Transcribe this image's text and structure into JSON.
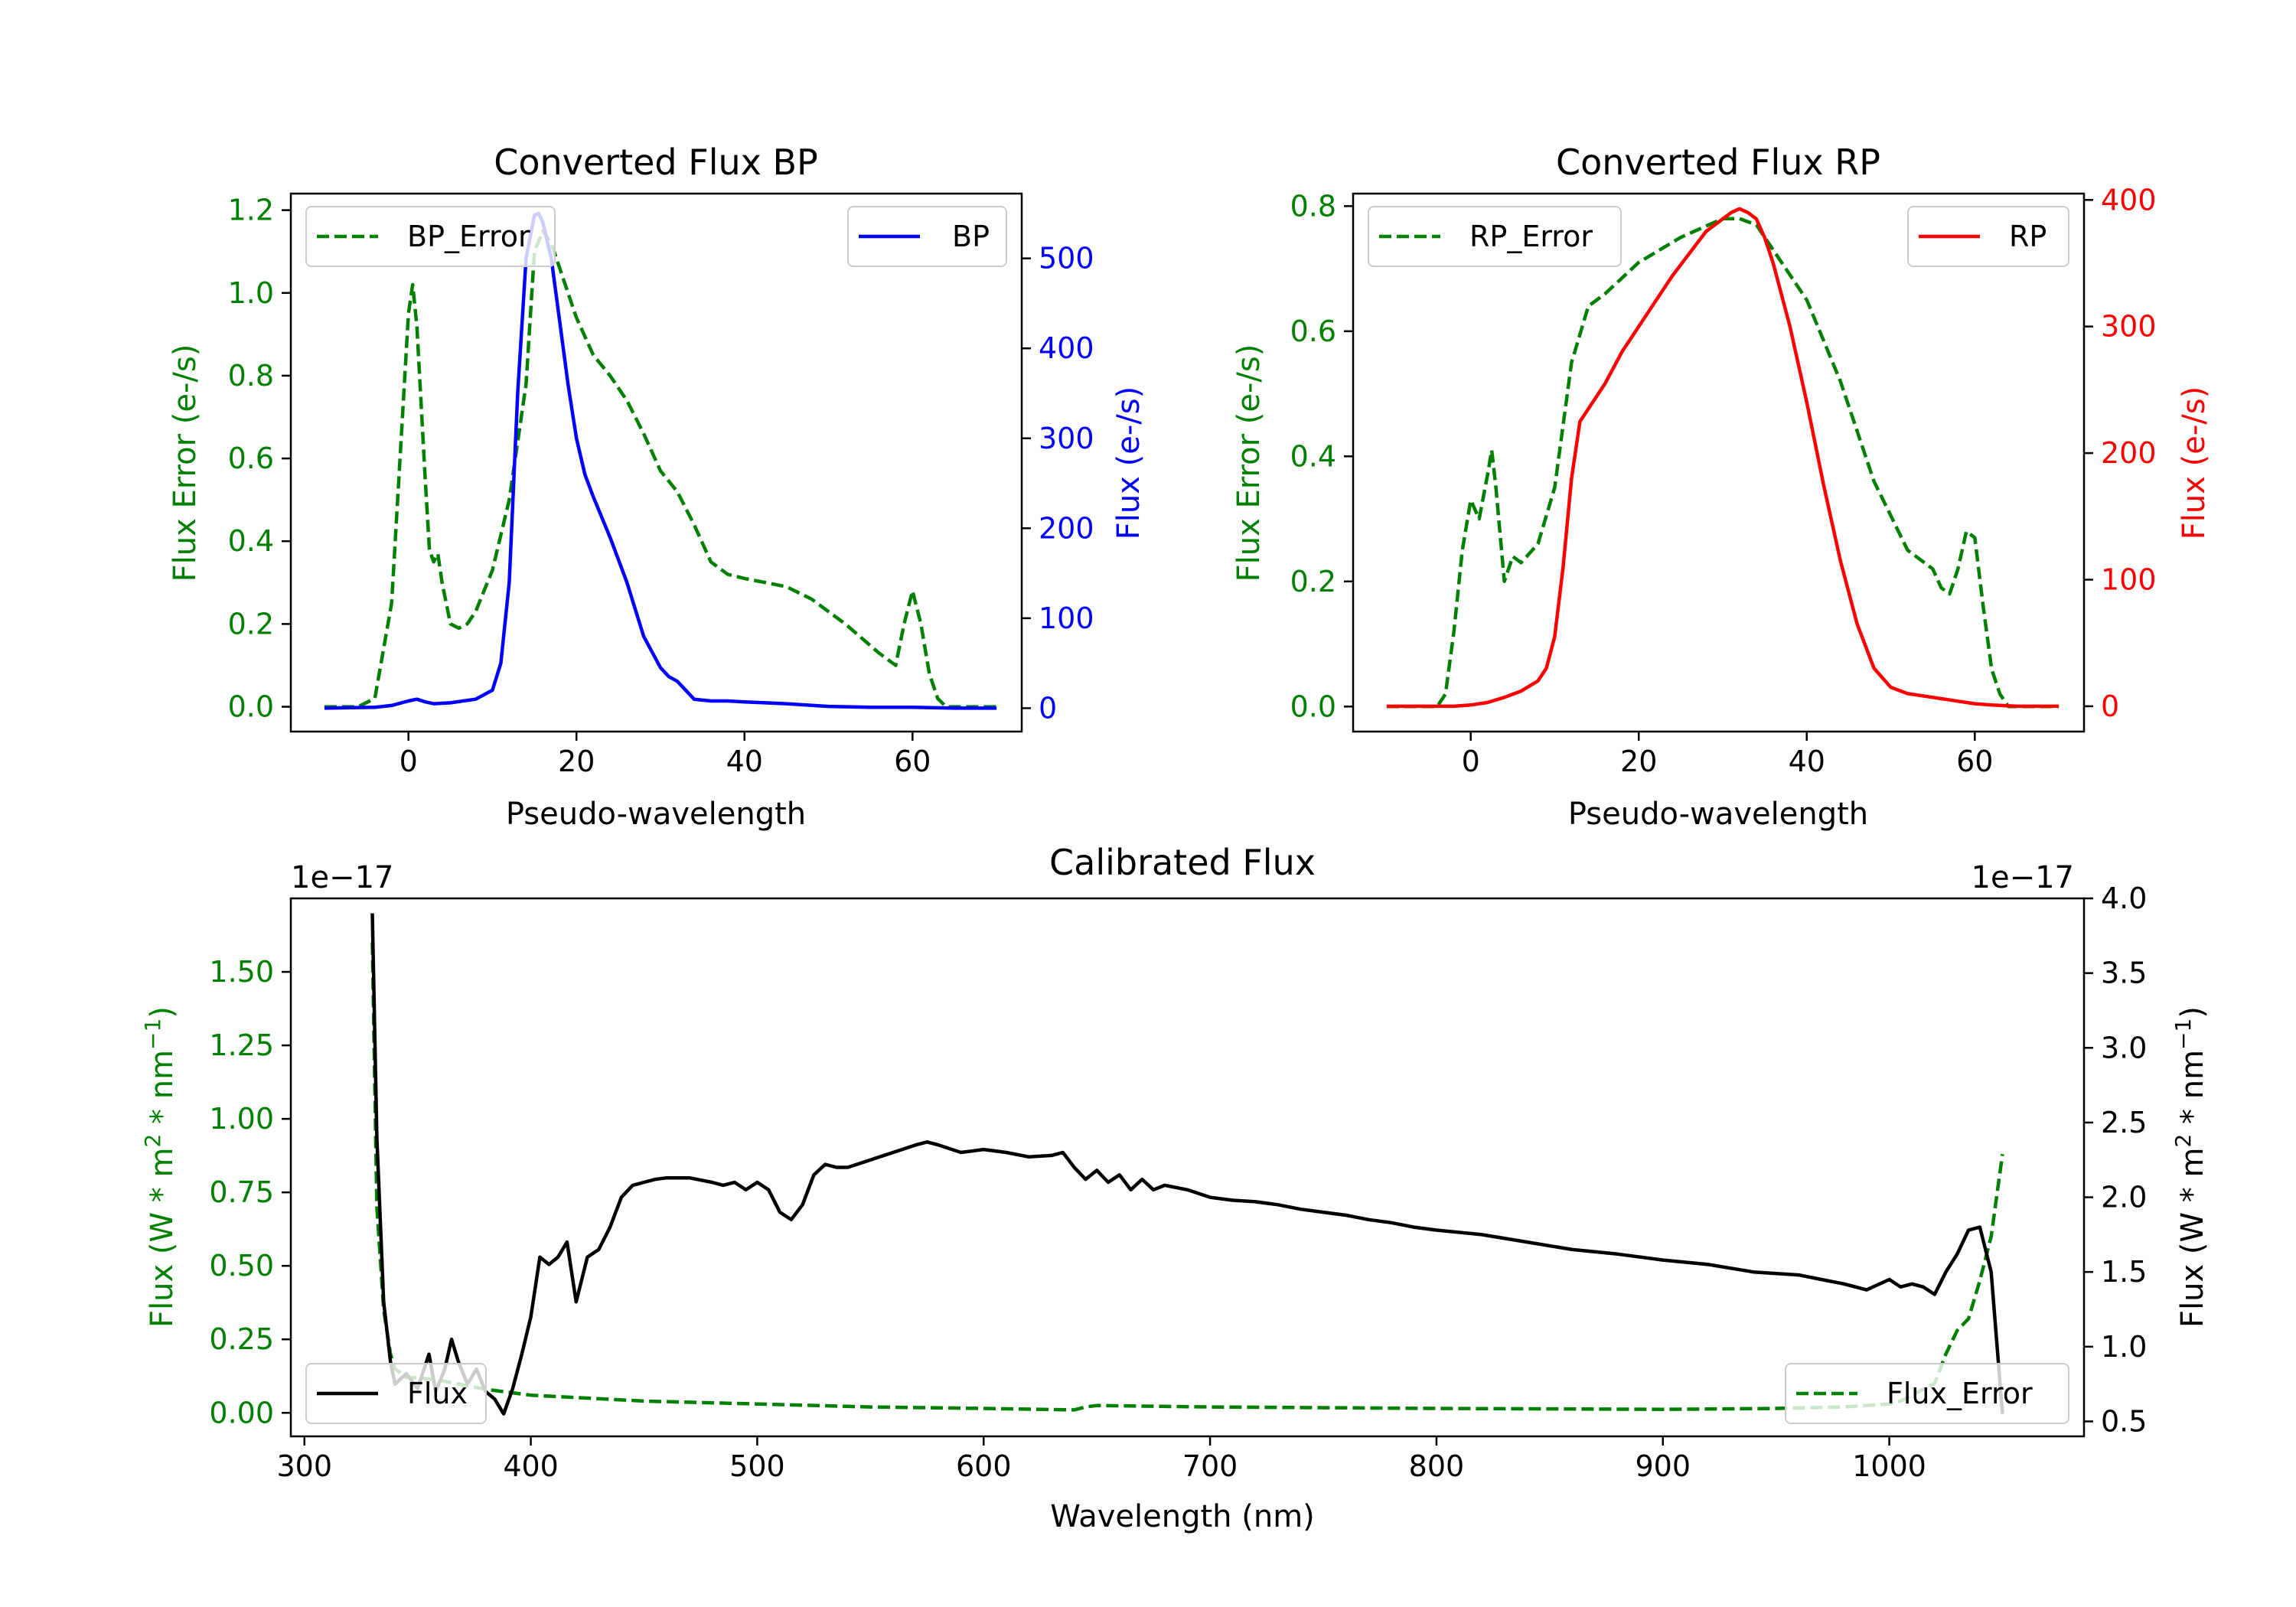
{
  "chart_data": [
    {
      "type": "line",
      "title": "Converted Flux BP",
      "xlabel": "Pseudo-wavelength",
      "xlim": [
        -14,
        73
      ],
      "xticks": [
        0,
        20,
        40,
        60
      ],
      "y_left": {
        "label": "Flux Error (e-/s)",
        "color": "#008000",
        "lim": [
          -0.06,
          1.24
        ],
        "ticks": [
          0.0,
          0.2,
          0.4,
          0.6,
          0.8,
          1.0,
          1.2
        ],
        "tick_decimals": 1
      },
      "y_right": {
        "label": "Flux (e-/s)",
        "color": "#0000ff",
        "lim": [
          -26,
          572
        ],
        "ticks": [
          0,
          100,
          200,
          300,
          400,
          500
        ],
        "tick_decimals": 0
      },
      "series": [
        {
          "name": "BP_Error",
          "axis": "left",
          "color": "#008000",
          "dashed": true,
          "x": [
            -10,
            -6,
            -4,
            -2,
            -1,
            0,
            0.5,
            1,
            2,
            2.5,
            3,
            3.5,
            4,
            5,
            6,
            7,
            8,
            10,
            12,
            14,
            15,
            16,
            17,
            18,
            19,
            20,
            22,
            24,
            26,
            28,
            30,
            32,
            34,
            36,
            38,
            40,
            45,
            48,
            52,
            56,
            58,
            59,
            60,
            61,
            62,
            63,
            64,
            66,
            70
          ],
          "y": [
            0.0,
            0.0,
            0.02,
            0.25,
            0.6,
            0.95,
            1.02,
            0.92,
            0.55,
            0.38,
            0.35,
            0.37,
            0.3,
            0.2,
            0.19,
            0.2,
            0.23,
            0.33,
            0.5,
            0.78,
            1.1,
            1.15,
            1.12,
            1.06,
            1.0,
            0.94,
            0.85,
            0.8,
            0.74,
            0.66,
            0.57,
            0.52,
            0.44,
            0.35,
            0.32,
            0.31,
            0.29,
            0.26,
            0.2,
            0.13,
            0.1,
            0.2,
            0.28,
            0.2,
            0.08,
            0.02,
            0.0,
            0.0,
            0.0
          ]
        },
        {
          "name": "BP",
          "axis": "right",
          "color": "#0000ff",
          "dashed": false,
          "x": [
            -10,
            -4,
            -2,
            0,
            1,
            2,
            3,
            5,
            8,
            10,
            11,
            12,
            13,
            14,
            15,
            15.5,
            16,
            17,
            18,
            19,
            20,
            21,
            22,
            24,
            26,
            28,
            30,
            31,
            32,
            34,
            36,
            38,
            40,
            45,
            50,
            55,
            60,
            65,
            70
          ],
          "y": [
            0,
            1,
            3,
            8,
            10,
            7,
            5,
            6,
            10,
            20,
            50,
            140,
            350,
            500,
            548,
            550,
            540,
            500,
            430,
            360,
            300,
            260,
            235,
            190,
            140,
            80,
            45,
            35,
            30,
            10,
            8,
            8,
            7,
            5,
            2,
            1,
            1,
            0,
            0
          ]
        }
      ],
      "legend": [
        {
          "label": "BP_Error",
          "position": "upper-left"
        },
        {
          "label": "BP",
          "position": "upper-right"
        }
      ]
    },
    {
      "type": "line",
      "title": "Converted Flux RP",
      "xlabel": "Pseudo-wavelength",
      "xlim": [
        -14,
        73
      ],
      "xticks": [
        0,
        20,
        40,
        60
      ],
      "y_left": {
        "label": "Flux Error (e-/s)",
        "color": "#008000",
        "lim": [
          -0.04,
          0.82
        ],
        "ticks": [
          0.0,
          0.2,
          0.4,
          0.6,
          0.8
        ],
        "tick_decimals": 1
      },
      "y_right": {
        "label": "Flux (e-/s)",
        "color": "#ff0000",
        "lim": [
          -20,
          405
        ],
        "ticks": [
          0,
          100,
          200,
          300,
          400
        ],
        "tick_decimals": 0
      },
      "series": [
        {
          "name": "RP_Error",
          "axis": "left",
          "color": "#008000",
          "dashed": true,
          "x": [
            -10,
            -4,
            -3,
            -2,
            -1,
            0,
            1,
            2,
            2.5,
            3,
            4,
            5,
            6,
            8,
            10,
            12,
            14,
            16,
            20,
            25,
            30,
            32,
            34,
            36,
            40,
            44,
            48,
            52,
            55,
            56,
            57,
            58,
            59,
            60,
            61,
            62,
            63,
            64,
            66,
            70
          ],
          "y": [
            0.0,
            0.0,
            0.02,
            0.12,
            0.25,
            0.33,
            0.3,
            0.37,
            0.41,
            0.35,
            0.2,
            0.24,
            0.23,
            0.26,
            0.35,
            0.55,
            0.64,
            0.66,
            0.71,
            0.75,
            0.78,
            0.78,
            0.77,
            0.73,
            0.65,
            0.52,
            0.36,
            0.25,
            0.22,
            0.19,
            0.18,
            0.22,
            0.28,
            0.27,
            0.16,
            0.06,
            0.02,
            0.0,
            0.0,
            0.0
          ]
        },
        {
          "name": "RP",
          "axis": "right",
          "color": "#ff0000",
          "dashed": false,
          "x": [
            -10,
            -2,
            0,
            2,
            4,
            6,
            8,
            9,
            10,
            11,
            12,
            13,
            14,
            16,
            18,
            20,
            24,
            28,
            30,
            31,
            32,
            33,
            34,
            35,
            36,
            38,
            40,
            42,
            44,
            46,
            48,
            50,
            52,
            55,
            58,
            60,
            62,
            65,
            70
          ],
          "y": [
            0,
            0,
            1,
            3,
            7,
            12,
            20,
            30,
            55,
            110,
            180,
            225,
            235,
            255,
            280,
            300,
            340,
            375,
            385,
            390,
            393,
            390,
            385,
            370,
            350,
            300,
            240,
            175,
            115,
            65,
            30,
            15,
            10,
            7,
            4,
            2,
            1,
            0,
            0
          ]
        }
      ],
      "legend": [
        {
          "label": "RP_Error",
          "position": "upper-left"
        },
        {
          "label": "RP",
          "position": "upper-right"
        }
      ]
    },
    {
      "type": "line",
      "title": "Calibrated Flux",
      "xlabel": "Wavelength (nm)",
      "xlim": [
        294,
        1086
      ],
      "xticks": [
        300,
        400,
        500,
        600,
        700,
        800,
        900,
        1000
      ],
      "y_left": {
        "label": "Flux (W * m$^2$ * nm$^{-1}$)",
        "label_main": "Flux (W * m",
        "label_sup1": "2",
        "label_mid": " * nm",
        "label_sup2": "−1",
        "label_end": ")",
        "color": "#008000",
        "lim": [
          -0.08,
          1.75
        ],
        "ticks": [
          0.0,
          0.25,
          0.5,
          0.75,
          1.0,
          1.25,
          1.5
        ],
        "tick_decimals": 2,
        "offset_text": "1e−17"
      },
      "y_right": {
        "label": "Flux (W * m$^2$ * nm$^{-1}$)",
        "label_main": "Flux (W * m",
        "label_sup1": "2",
        "label_mid": " * nm",
        "label_sup2": "−1",
        "label_end": ")",
        "color": "#000000",
        "lim": [
          0.4,
          4.0
        ],
        "ticks": [
          0.5,
          1.0,
          1.5,
          2.0,
          2.5,
          3.0,
          3.5,
          4.0
        ],
        "tick_decimals": 1,
        "offset_text": "1e−17"
      },
      "series": [
        {
          "name": "Flux",
          "axis": "right",
          "color": "#000000",
          "dashed": false,
          "x": [
            330,
            332,
            335,
            338,
            340,
            345,
            350,
            355,
            358,
            362,
            365,
            368,
            372,
            376,
            380,
            384,
            388,
            392,
            396,
            400,
            404,
            408,
            412,
            416,
            420,
            425,
            430,
            435,
            440,
            445,
            450,
            455,
            460,
            470,
            480,
            485,
            490,
            495,
            500,
            505,
            510,
            515,
            520,
            525,
            530,
            535,
            540,
            550,
            560,
            570,
            575,
            580,
            590,
            600,
            610,
            620,
            630,
            635,
            640,
            645,
            650,
            655,
            660,
            665,
            670,
            675,
            680,
            690,
            700,
            710,
            720,
            730,
            740,
            750,
            760,
            770,
            780,
            790,
            800,
            820,
            840,
            860,
            880,
            900,
            920,
            940,
            960,
            970,
            980,
            990,
            1000,
            1005,
            1010,
            1015,
            1020,
            1025,
            1030,
            1035,
            1040,
            1045,
            1050
          ],
          "y": [
            3.9,
            2.4,
            1.3,
            0.9,
            0.75,
            0.82,
            0.72,
            0.95,
            0.7,
            0.85,
            1.05,
            0.9,
            0.75,
            0.85,
            0.7,
            0.65,
            0.55,
            0.72,
            0.95,
            1.2,
            1.6,
            1.55,
            1.6,
            1.7,
            1.3,
            1.6,
            1.65,
            1.8,
            2.0,
            2.08,
            2.1,
            2.12,
            2.13,
            2.13,
            2.1,
            2.08,
            2.1,
            2.05,
            2.1,
            2.05,
            1.9,
            1.85,
            1.95,
            2.15,
            2.22,
            2.2,
            2.2,
            2.25,
            2.3,
            2.35,
            2.37,
            2.35,
            2.3,
            2.32,
            2.3,
            2.27,
            2.28,
            2.3,
            2.2,
            2.12,
            2.18,
            2.1,
            2.15,
            2.05,
            2.12,
            2.05,
            2.08,
            2.05,
            2.0,
            1.98,
            1.97,
            1.95,
            1.92,
            1.9,
            1.88,
            1.85,
            1.83,
            1.8,
            1.78,
            1.75,
            1.7,
            1.65,
            1.62,
            1.58,
            1.55,
            1.5,
            1.48,
            1.45,
            1.42,
            1.38,
            1.45,
            1.4,
            1.42,
            1.4,
            1.35,
            1.5,
            1.62,
            1.78,
            1.8,
            1.5,
            0.55
          ]
        },
        {
          "name": "Flux_Error",
          "axis": "left",
          "color": "#008000",
          "dashed": true,
          "x": [
            330,
            332,
            335,
            338,
            340,
            345,
            350,
            360,
            380,
            400,
            450,
            500,
            550,
            600,
            640,
            645,
            650,
            700,
            800,
            900,
            950,
            980,
            1000,
            1005,
            1010,
            1015,
            1020,
            1025,
            1030,
            1035,
            1040,
            1045,
            1050
          ],
          "y": [
            1.6,
            0.7,
            0.35,
            0.2,
            0.15,
            0.12,
            0.12,
            0.11,
            0.08,
            0.06,
            0.04,
            0.03,
            0.02,
            0.015,
            0.01,
            0.02,
            0.025,
            0.02,
            0.015,
            0.012,
            0.015,
            0.02,
            0.03,
            0.04,
            0.06,
            0.08,
            0.1,
            0.2,
            0.28,
            0.32,
            0.45,
            0.6,
            0.88
          ]
        }
      ],
      "legend": [
        {
          "label": "Flux",
          "position": "lower-left"
        },
        {
          "label": "Flux_Error",
          "position": "lower-right"
        }
      ]
    }
  ]
}
